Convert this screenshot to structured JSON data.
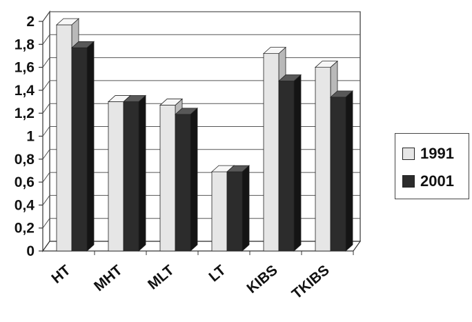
{
  "chart_data": {
    "type": "bar",
    "title": "",
    "xlabel": "",
    "ylabel": "",
    "categories": [
      "HT",
      "MHT",
      "MLT",
      "LT",
      "KIBS",
      "TKIBS"
    ],
    "series": [
      {
        "name": "1991",
        "values": [
          1.97,
          1.3,
          1.27,
          0.69,
          1.72,
          1.6
        ],
        "color": "#e6e6e6"
      },
      {
        "name": "2001",
        "values": [
          1.77,
          1.3,
          1.19,
          0.69,
          1.48,
          1.34
        ],
        "color": "#2c2c2c"
      }
    ],
    "ylim": [
      0,
      2
    ],
    "y_ticks": [
      "0",
      "0,2",
      "0,4",
      "0,6",
      "0,8",
      "1",
      "1,2",
      "1,4",
      "1,6",
      "1,8",
      "2"
    ],
    "grid": true,
    "style": "3d-clustered-column",
    "legend_position": "right"
  }
}
